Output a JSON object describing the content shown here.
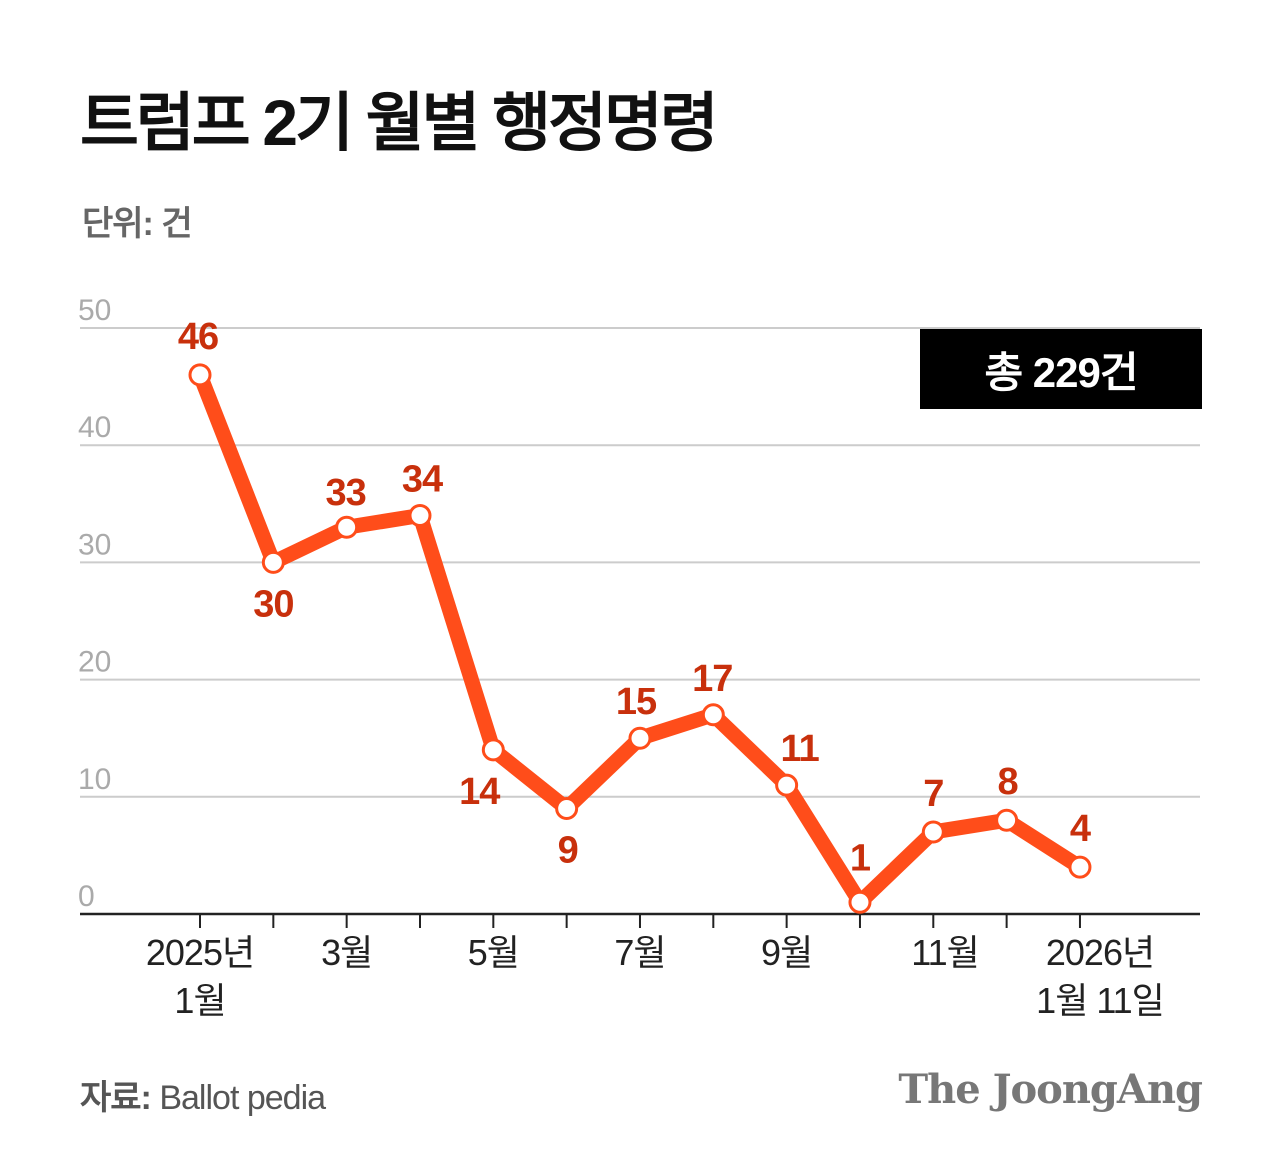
{
  "title": "트럼프 2기 월별 행정명령",
  "unit_label": "단위: 건",
  "total_badge": "총 229건",
  "source": {
    "label": "자료:",
    "value": "Ballot pedia"
  },
  "logo": "The JoongAng",
  "chart_data": {
    "type": "line",
    "title": "트럼프 2기 월별 행정명령",
    "ylabel": "단위: 건",
    "ylim": [
      0,
      50
    ],
    "yticks": [
      0,
      10,
      20,
      30,
      40,
      50
    ],
    "grid": true,
    "categories": [
      "2025-01",
      "2025-02",
      "2025-03",
      "2025-04",
      "2025-05",
      "2025-06",
      "2025-07",
      "2025-08",
      "2025-09",
      "2025-10",
      "2025-11",
      "2025-12",
      "2026-01-11"
    ],
    "xtick_labels": [
      {
        "index": 0,
        "lines": [
          "2025년",
          "1월"
        ]
      },
      {
        "index": 2,
        "lines": [
          "3월"
        ]
      },
      {
        "index": 4,
        "lines": [
          "5월"
        ]
      },
      {
        "index": 6,
        "lines": [
          "7월"
        ]
      },
      {
        "index": 8,
        "lines": [
          "9월"
        ]
      },
      {
        "index": 10,
        "lines": [
          "11월"
        ]
      },
      {
        "index": 12,
        "lines": [
          "2026년",
          "1월 11일"
        ]
      }
    ],
    "values": [
      46,
      30,
      33,
      34,
      14,
      9,
      15,
      17,
      11,
      1,
      7,
      8,
      4
    ],
    "line_color": "#ff4d1a",
    "label_color": "#c8300c"
  }
}
